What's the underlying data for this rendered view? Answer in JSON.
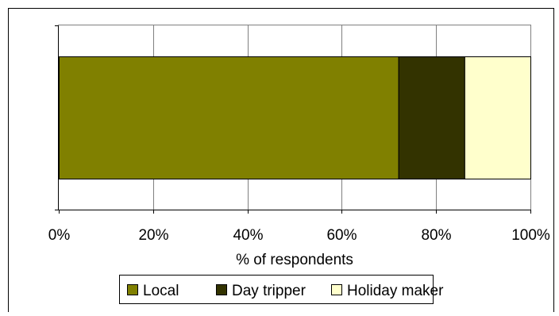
{
  "chart_data": {
    "type": "bar",
    "orientation": "horizontal",
    "stacked": "percent",
    "categories": [
      ""
    ],
    "series": [
      {
        "name": "Local",
        "values": [
          72
        ],
        "color": "#808000"
      },
      {
        "name": "Day tripper",
        "values": [
          14
        ],
        "color": "#333300"
      },
      {
        "name": "Holiday maker",
        "values": [
          14
        ],
        "color": "#FFFFCC"
      }
    ],
    "title": "",
    "xlabel": "% of respondents",
    "ylabel": "",
    "xlim": [
      0,
      100
    ],
    "x_ticks": [
      "0%",
      "20%",
      "40%",
      "60%",
      "80%",
      "100%"
    ],
    "grid": "vertical",
    "legend_position": "bottom"
  }
}
